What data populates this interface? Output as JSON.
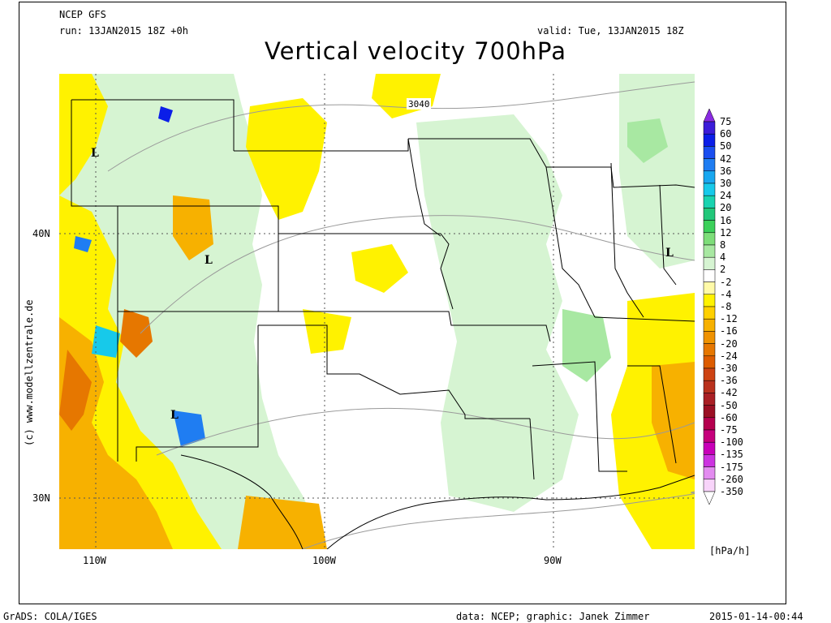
{
  "header": {
    "model": "NCEP GFS",
    "run": "run: 13JAN2015 18Z +0h",
    "valid": "valid: Tue, 13JAN2015 18Z",
    "title": "Vertical velocity 700hPa"
  },
  "axes": {
    "lat_labels": [
      "40N",
      "30N"
    ],
    "lon_labels": [
      "110W",
      "100W",
      "90W"
    ]
  },
  "map": {
    "contour_label": "3040",
    "low_markers": [
      "L",
      "L",
      "L",
      "L"
    ]
  },
  "legend": {
    "levels": [
      "75",
      "60",
      "50",
      "42",
      "36",
      "30",
      "24",
      "20",
      "16",
      "12",
      "8",
      "4",
      "2",
      "-2",
      "-4",
      "-8",
      "-12",
      "-16",
      "-20",
      "-24",
      "-30",
      "-36",
      "-42",
      "-50",
      "-60",
      "-75",
      "-100",
      "-135",
      "-175",
      "-260",
      "-350"
    ],
    "colors": [
      "#8a2be2",
      "#3c1cd9",
      "#0b1ee8",
      "#1a4ef0",
      "#1f7df2",
      "#18a7f0",
      "#17c9ea",
      "#19d3b0",
      "#22c77a",
      "#3cd05a",
      "#7ddd79",
      "#a8e8a2",
      "#d6f4d2",
      "#ffffff",
      "#fffaa8",
      "#fff200",
      "#ffd000",
      "#f7b100",
      "#ef9200",
      "#e67700",
      "#dd5c00",
      "#cd4313",
      "#b9311d",
      "#a91f24",
      "#9a0f23",
      "#b5004e",
      "#c6007c",
      "#c800b8",
      "#cc33e0",
      "#e38cf0",
      "#f8d4fa"
    ],
    "units": "[hPa/h]"
  },
  "footer": {
    "left": "GrADS: COLA/IGES",
    "center": "data: NCEP; graphic: Janek Zimmer",
    "right": "2015-01-14-00:44"
  },
  "credit": "(c) www.modellzentrale.de"
}
